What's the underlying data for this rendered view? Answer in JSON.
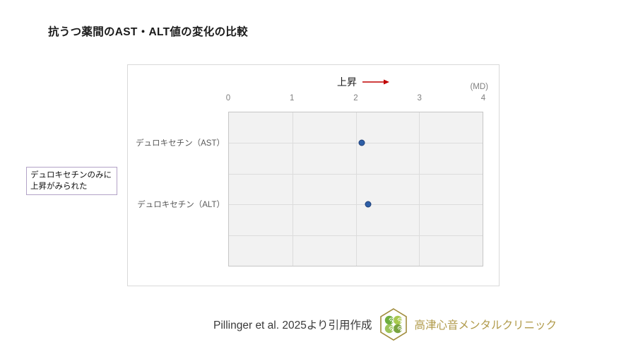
{
  "page": {
    "title": "抗うつ薬間のAST・ALT値の変化の比較"
  },
  "callout": {
    "line1": "デュロキセチンのみに",
    "line2": "上昇がみられた"
  },
  "chart_data": {
    "type": "scatter",
    "title": "抗うつ薬間のAST・ALT値の変化の比較",
    "direction_label": "上昇",
    "axis_unit_label": "(MD)",
    "x_ticks": [
      "0",
      "1",
      "2",
      "3",
      "4"
    ],
    "xlim": [
      0,
      4
    ],
    "grid": true,
    "legend": "none",
    "categories": [
      "デュロキセチン（AST）",
      "デュロキセチン（ALT）"
    ],
    "values": [
      2.1,
      2.2
    ],
    "annotation": "デュロキセチンのみに上昇がみられた",
    "point_fill_color": "#2e5fa7",
    "point_border_color": "#1f3f77",
    "arrow_color": "#c00000",
    "plot_background": "#f2f2f2",
    "gridline_color": "#dcdcdc"
  },
  "footer": {
    "citation": "Pillinger et al. 2025より引用作成",
    "clinic_name": "高津心音メンタルクリニック",
    "clinic_color": "#b09a4a",
    "logo_gold": "#a08c3c",
    "logo_greens": [
      "#6fae3e",
      "#a8c94e",
      "#9dc45a",
      "#79a33f"
    ]
  }
}
